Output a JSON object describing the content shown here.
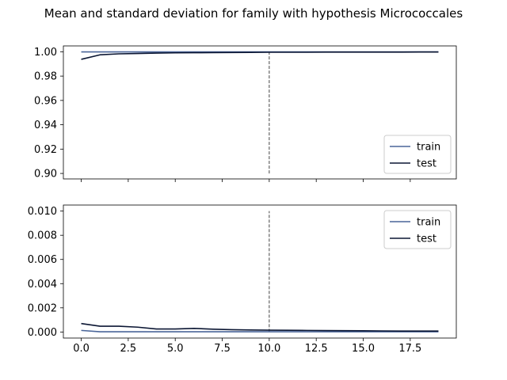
{
  "chart_data": {
    "type": "line",
    "title": "Mean and standard deviation for family with hypothesis Micrococcales",
    "colors": {
      "train": "#4a6599",
      "test": "#0b1633",
      "vline": "#444444"
    },
    "x": [
      0,
      1,
      2,
      3,
      4,
      5,
      6,
      7,
      8,
      9,
      10,
      11,
      12,
      13,
      14,
      15,
      16,
      17,
      18,
      19
    ],
    "xlim": [
      -0.95,
      19.95
    ],
    "x_ticks": [
      0,
      2.5,
      5,
      7.5,
      10,
      12.5,
      15,
      17.5
    ],
    "x_tick_labels": [
      "0.0",
      "2.5",
      "5.0",
      "7.5",
      "10.0",
      "12.5",
      "15.0",
      "17.5"
    ],
    "panels": [
      {
        "name": "mean",
        "ylim": [
          0.8955,
          1.0048
        ],
        "y_ticks": [
          0.9,
          0.92,
          0.94,
          0.96,
          0.98,
          1.0
        ],
        "y_tick_labels": [
          "0.90",
          "0.92",
          "0.94",
          "0.96",
          "0.98",
          "1.00"
        ],
        "show_x_tick_labels": false,
        "vline": {
          "x": 10,
          "y0": 0.9,
          "y1": 1.0
        },
        "legend": {
          "position": "lower right",
          "entries": [
            "train",
            "test"
          ]
        },
        "series": [
          {
            "name": "train",
            "values": [
              0.9999,
              0.9999,
              0.9999,
              0.9999,
              0.9999,
              0.9999,
              0.9999,
              0.9999,
              0.9999,
              0.9999,
              0.9999,
              0.9999,
              0.9999,
              0.9999,
              0.9999,
              0.9999,
              0.9999,
              0.9999,
              0.9999,
              0.9999
            ]
          },
          {
            "name": "test",
            "values": [
              0.9938,
              0.9975,
              0.9983,
              0.9986,
              0.9989,
              0.9991,
              0.9992,
              0.9993,
              0.9994,
              0.9995,
              0.9996,
              0.9996,
              0.9996,
              0.9997,
              0.9997,
              0.9997,
              0.9997,
              0.9997,
              0.9998,
              0.9998
            ]
          }
        ]
      },
      {
        "name": "std",
        "ylim": [
          -0.0005,
          0.0105
        ],
        "y_ticks": [
          0.0,
          0.002,
          0.004,
          0.006,
          0.008,
          0.01
        ],
        "y_tick_labels": [
          "0.000",
          "0.002",
          "0.004",
          "0.006",
          "0.008",
          "0.010"
        ],
        "show_x_tick_labels": true,
        "vline": {
          "x": 10,
          "y0": 0.0,
          "y1": 0.01
        },
        "legend": {
          "position": "upper right",
          "entries": [
            "train",
            "test"
          ]
        },
        "series": [
          {
            "name": "train",
            "values": [
              0.00013,
              2e-05,
              2e-05,
              2e-05,
              2e-05,
              2e-05,
              2e-05,
              2e-05,
              2e-05,
              2e-05,
              2e-05,
              2e-05,
              2e-05,
              2e-05,
              2e-05,
              2e-05,
              2e-05,
              2e-05,
              2e-05,
              2e-05
            ]
          },
          {
            "name": "test",
            "values": [
              0.0007,
              0.00048,
              0.00048,
              0.0004,
              0.00025,
              0.00025,
              0.0003,
              0.00023,
              0.00019,
              0.00017,
              0.00015,
              0.00014,
              0.00013,
              0.00012,
              0.00011,
              0.0001,
              9e-05,
              8e-05,
              8e-05,
              8e-05
            ]
          }
        ]
      }
    ]
  }
}
